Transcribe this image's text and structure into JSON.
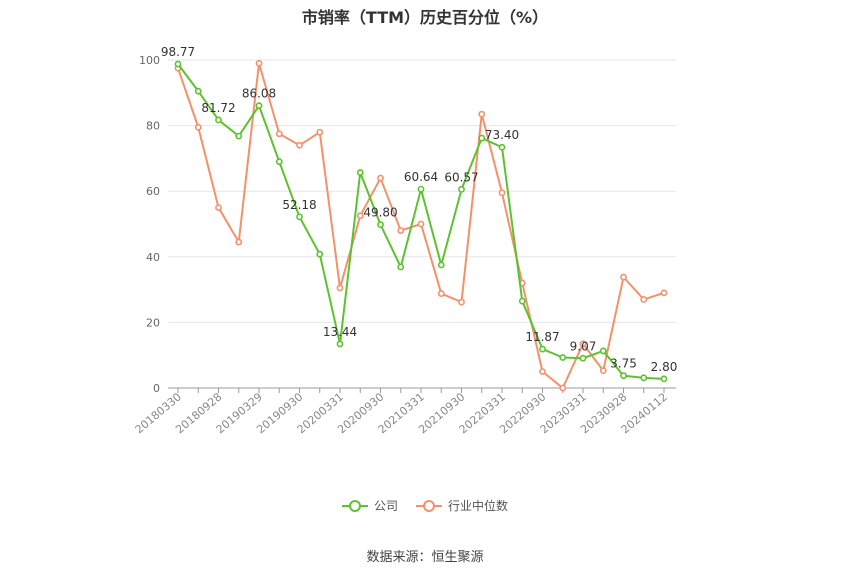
{
  "chart_data": {
    "type": "line",
    "title": "市销率（TTM）历史百分位（%）",
    "source_label": "数据来源：",
    "source_name": "恒生聚源",
    "ylim": [
      0,
      100
    ],
    "y_ticks": [
      0,
      20,
      40,
      60,
      80,
      100
    ],
    "grid": true,
    "legend_position": "bottom",
    "x_tick_labels": [
      "20180330",
      "20180928",
      "20190329",
      "20190930",
      "20200331",
      "20200930",
      "20210331",
      "20210930",
      "20220331",
      "20220930",
      "20230331",
      "20230928",
      "20240112"
    ],
    "x": [
      "20180330",
      "",
      "20180928",
      "",
      "20190329",
      "",
      "20190930",
      "",
      "20200331",
      "",
      "20200930",
      "",
      "20210331",
      "",
      "20210930",
      "",
      "20220331",
      "",
      "20220930",
      "",
      "20230331",
      "",
      "20230928",
      "",
      "20240112"
    ],
    "series": [
      {
        "name": "公司",
        "color": "#5cc22e",
        "values": [
          98.77,
          90.5,
          81.72,
          76.8,
          86.08,
          69.0,
          52.18,
          40.8,
          13.44,
          65.7,
          49.8,
          36.9,
          60.64,
          37.5,
          60.57,
          76.2,
          73.4,
          26.5,
          11.87,
          9.3,
          9.07,
          11.3,
          3.75,
          3.1,
          2.8
        ],
        "labels": {
          "0": "98.77",
          "2": "81.72",
          "4": "86.08",
          "6": "52.18",
          "8": "13.44",
          "10": "49.80",
          "12": "60.64",
          "14": "60.57",
          "16": "73.40",
          "18": "11.87",
          "20": "9.07",
          "22": "3.75",
          "24": "2.80"
        }
      },
      {
        "name": "行业中位数",
        "color": "#f4916a",
        "values": [
          97.5,
          79.5,
          55.0,
          44.5,
          99.0,
          77.5,
          74.0,
          78.0,
          30.5,
          52.5,
          64.0,
          48.0,
          50.0,
          28.8,
          26.2,
          83.5,
          59.5,
          32.0,
          5.0,
          0.0,
          13.5,
          5.3,
          33.8,
          27.0,
          29.0
        ]
      }
    ]
  }
}
